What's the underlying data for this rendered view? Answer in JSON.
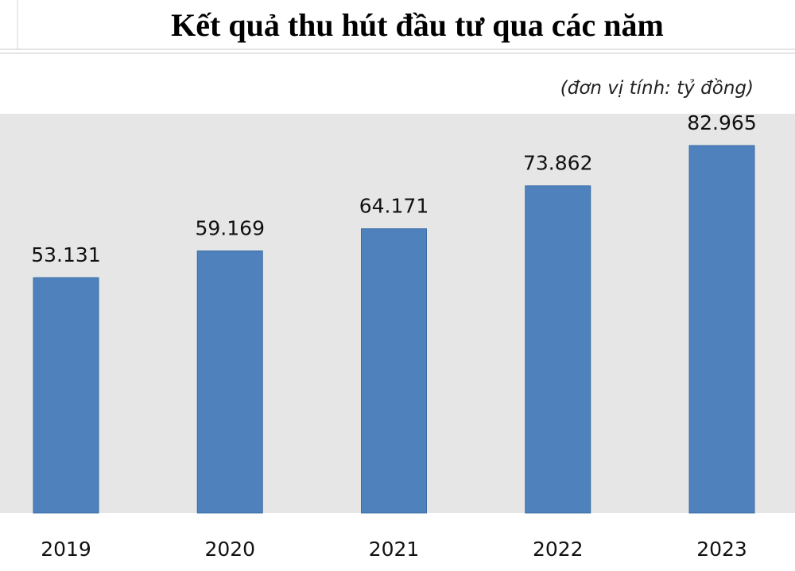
{
  "chart_data": {
    "type": "bar",
    "title": "Kết quả thu hút đầu tư qua các năm",
    "subtitle": "(đơn vị tính: tỷ đồng)",
    "categories": [
      "2019",
      "2020",
      "2021",
      "2022",
      "2023"
    ],
    "values": [
      53131,
      59169,
      64171,
      73862,
      82965
    ],
    "value_labels": [
      "53.131",
      "59.169",
      "64.171",
      "73.862",
      "82.965"
    ],
    "color": "#4f81bd"
  }
}
